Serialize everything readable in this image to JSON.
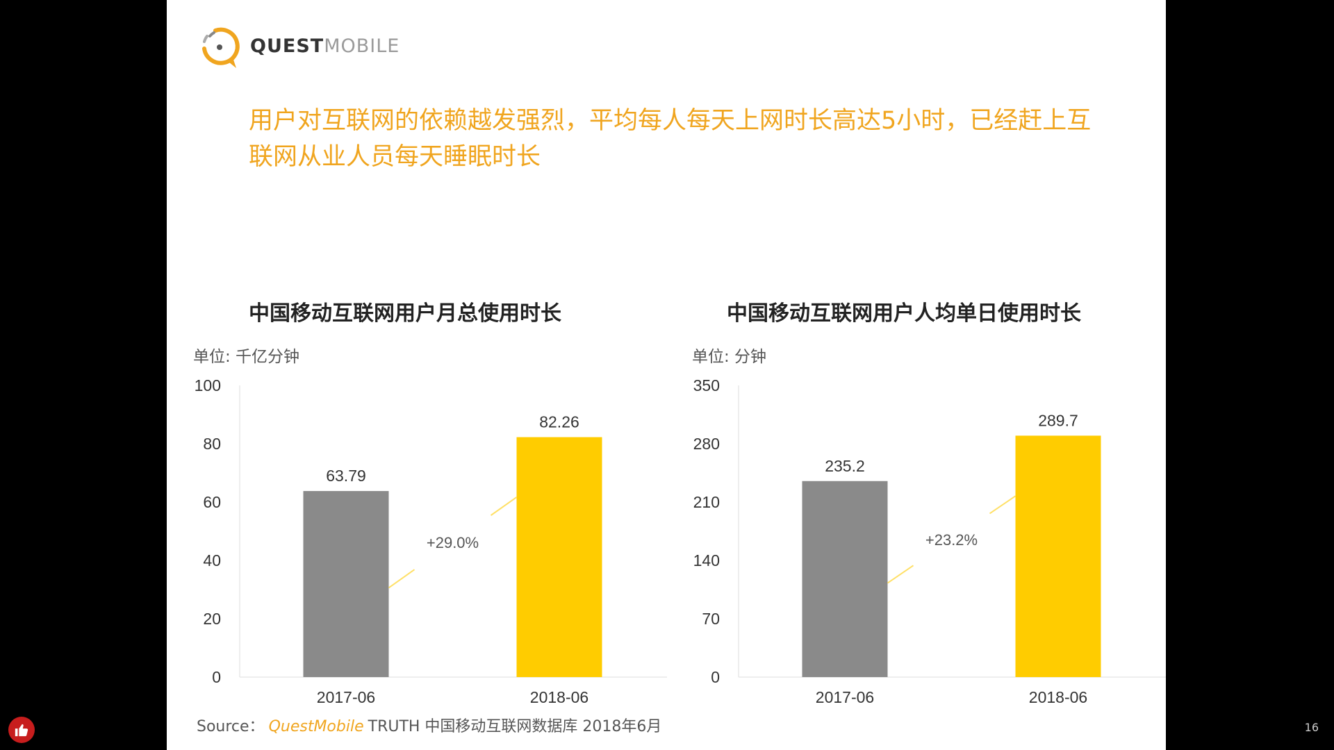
{
  "brand": {
    "name_strong": "QUEST",
    "name_light": "MOBILE",
    "color": "#f0a51f"
  },
  "headline": "用户对互联网的依赖越发强烈，平均每人每天上网时长高达5小时，已经赶上互联网从业人员每天睡眠时长",
  "chart_data": [
    {
      "type": "bar",
      "title": "中国移动互联网用户月总使用时长",
      "unit": "单位: 千亿分钟",
      "categories": [
        "2017-06",
        "2018-06"
      ],
      "values": [
        63.79,
        82.26
      ],
      "value_labels": [
        "63.79",
        "82.26"
      ],
      "colors": [
        "#8a8a8a",
        "#ffcc00"
      ],
      "ylim": [
        0,
        100
      ],
      "yticks": [
        0,
        20,
        40,
        60,
        80,
        100
      ],
      "growth_label": "+29.0%",
      "grid": false
    },
    {
      "type": "bar",
      "title": "中国移动互联网用户人均单日使用时长",
      "unit": "单位: 分钟",
      "categories": [
        "2017-06",
        "2018-06"
      ],
      "values": [
        235.2,
        289.7
      ],
      "value_labels": [
        "235.2",
        "289.7"
      ],
      "colors": [
        "#8a8a8a",
        "#ffcc00"
      ],
      "ylim": [
        0,
        350
      ],
      "yticks": [
        0,
        70,
        140,
        210,
        280,
        350
      ],
      "growth_label": "+23.2%",
      "grid": false
    }
  ],
  "source": {
    "prefix": "Source：",
    "brand": "QuestMobile",
    "text": "TRUTH 中国移动互联网数据库 2018年6月"
  },
  "page_number": "16"
}
